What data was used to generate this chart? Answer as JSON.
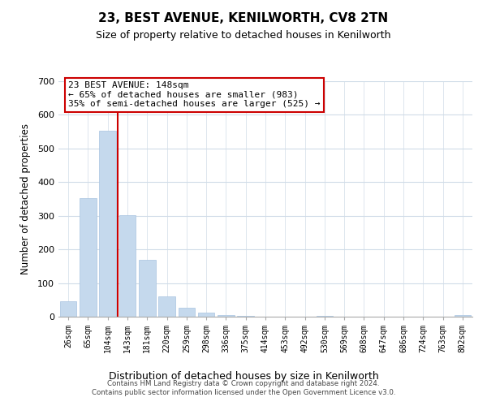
{
  "title": "23, BEST AVENUE, KENILWORTH, CV8 2TN",
  "subtitle": "Size of property relative to detached houses in Kenilworth",
  "xlabel": "Distribution of detached houses by size in Kenilworth",
  "ylabel": "Number of detached properties",
  "bar_labels": [
    "26sqm",
    "65sqm",
    "104sqm",
    "143sqm",
    "181sqm",
    "220sqm",
    "259sqm",
    "298sqm",
    "336sqm",
    "375sqm",
    "414sqm",
    "453sqm",
    "492sqm",
    "530sqm",
    "569sqm",
    "608sqm",
    "647sqm",
    "686sqm",
    "724sqm",
    "763sqm",
    "802sqm"
  ],
  "bar_values": [
    47,
    352,
    553,
    302,
    168,
    60,
    26,
    12,
    5,
    2,
    0,
    0,
    0,
    3,
    0,
    0,
    0,
    0,
    0,
    0,
    5
  ],
  "bar_color": "#c5d9ed",
  "bar_edge_color": "#a8c4e0",
  "vline_x_index": 3,
  "vline_color": "#cc0000",
  "ylim": [
    0,
    700
  ],
  "yticks": [
    0,
    100,
    200,
    300,
    400,
    500,
    600,
    700
  ],
  "annotation_title": "23 BEST AVENUE: 148sqm",
  "annotation_line1": "← 65% of detached houses are smaller (983)",
  "annotation_line2": "35% of semi-detached houses are larger (525) →",
  "annotation_box_color": "#ffffff",
  "annotation_box_edge": "#cc0000",
  "footer_line1": "Contains HM Land Registry data © Crown copyright and database right 2024.",
  "footer_line2": "Contains public sector information licensed under the Open Government Licence v3.0.",
  "background_color": "#ffffff",
  "grid_color": "#d0dce8"
}
